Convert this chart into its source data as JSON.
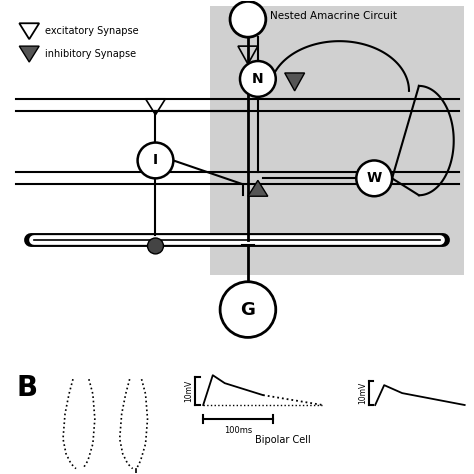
{
  "bg_color": "#ffffff",
  "gray_color": "#d0d0d0",
  "col": "#000000",
  "excitatory_text": "excitatory Synapse",
  "inhibitory_text": "inhibitory Synapse",
  "nested_text": "Nested Amacrine Circuit",
  "B_text": "B",
  "bipolar_cell_text": "Bipolar Cell",
  "G_text": "G",
  "N_text": "N",
  "W_text": "W",
  "I_text": "I",
  "scale_10mV": "10mV",
  "scale_100ms": "100ms"
}
